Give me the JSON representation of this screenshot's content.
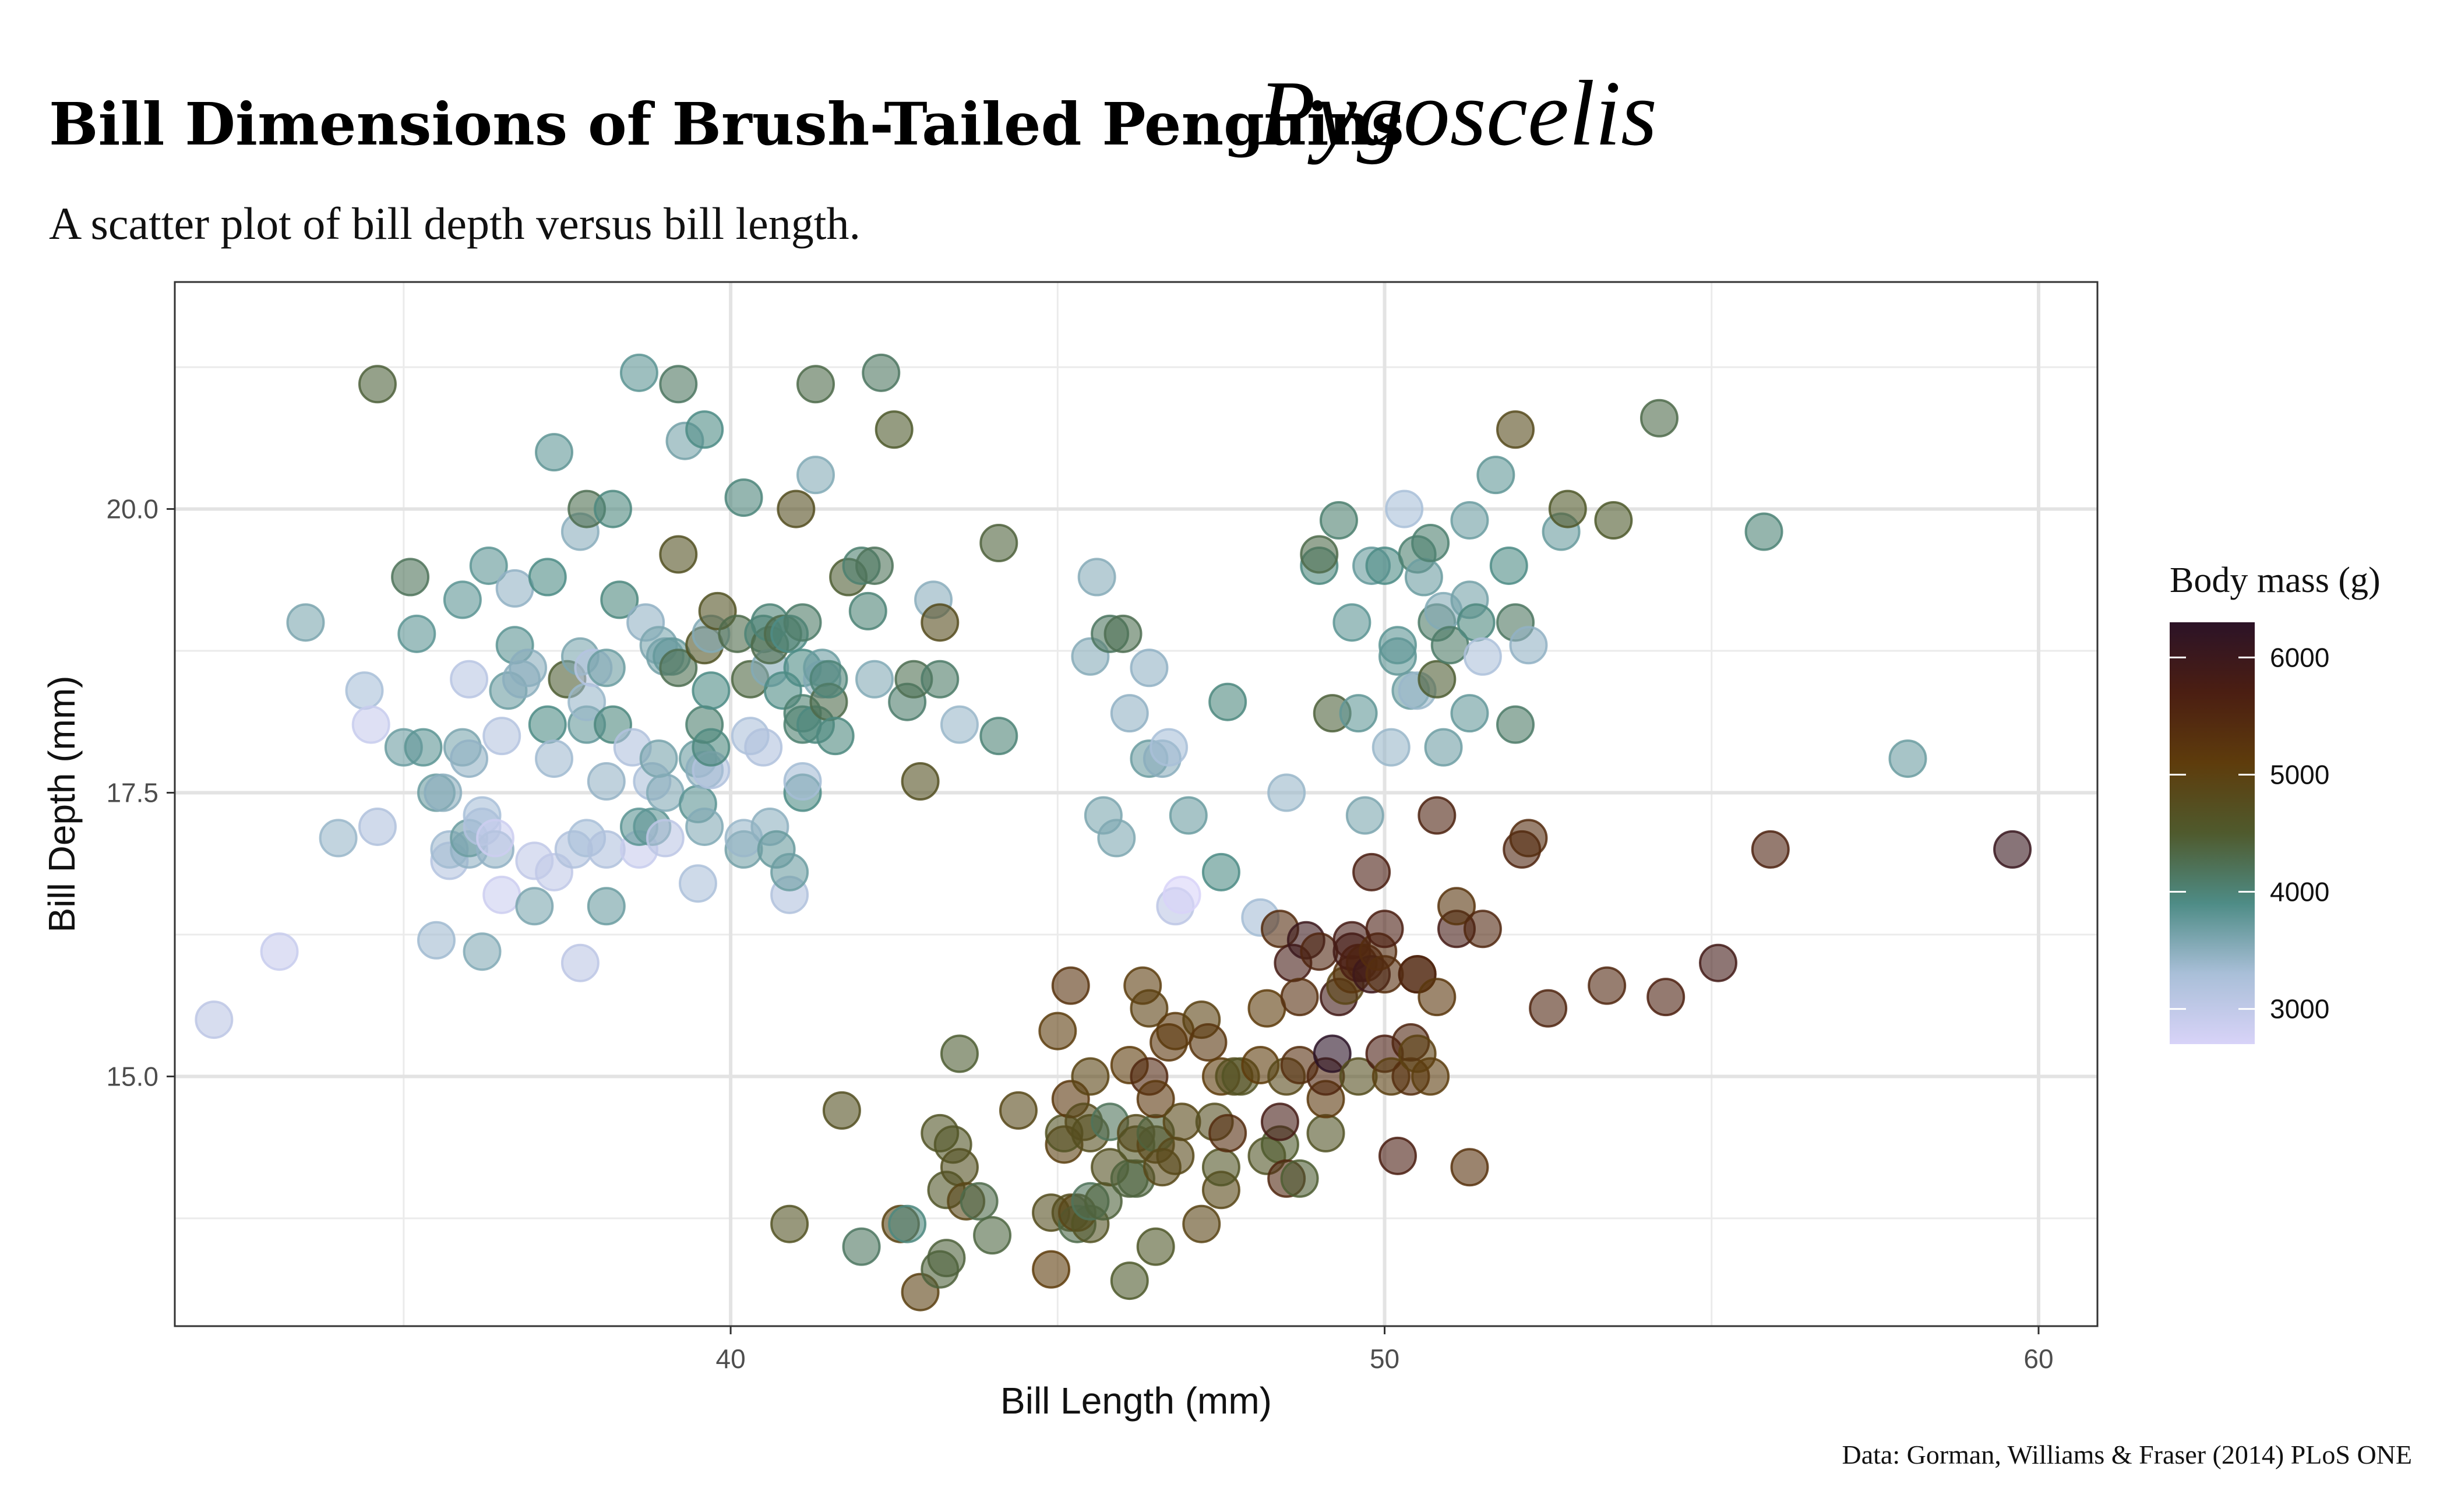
{
  "title": "Bill Dimensions of Brush-Tailed Penguins",
  "title_script": "Pygoscelis",
  "subtitle": "A scatter plot of bill depth versus bill length.",
  "caption": "Data: Gorman, Williams & Fraser (2014) PLoS ONE",
  "chart_data": {
    "type": "scatter",
    "xlabel": "Bill Length (mm)",
    "ylabel": "Bill Depth (mm)",
    "xlim": [
      31.5,
      60.9
    ],
    "ylim": [
      12.8,
      22.0
    ],
    "x_ticks": [
      40,
      50,
      60
    ],
    "x_tick_labels": [
      "40",
      "50",
      "60"
    ],
    "y_ticks": [
      15.0,
      17.5,
      20.0
    ],
    "y_tick_labels": [
      "15.0",
      "17.5",
      "20.0"
    ],
    "grid": true,
    "legend_position": "right",
    "color_legend": {
      "title": "Body mass (g)",
      "ticks": [
        3000,
        4000,
        5000,
        6000
      ],
      "tick_labels": [
        "3000",
        "4000",
        "5000",
        "6000"
      ],
      "range": [
        2700,
        6300
      ],
      "palette": [
        "#d8d3f8",
        "#a9bfd8",
        "#4e8c86",
        "#4f5a2d",
        "#5e3c0c",
        "#4b1e12",
        "#2c1327"
      ]
    },
    "points": [
      [
        32.1,
        15.5,
        3050
      ],
      [
        33.1,
        16.1,
        2900
      ],
      [
        33.5,
        19.0,
        3600
      ],
      [
        34.0,
        17.1,
        3400
      ],
      [
        34.4,
        18.4,
        3300
      ],
      [
        34.5,
        18.1,
        2900
      ],
      [
        34.6,
        17.2,
        3200
      ],
      [
        34.6,
        21.1,
        4400
      ],
      [
        35.0,
        17.9,
        3700
      ],
      [
        35.1,
        19.4,
        4200
      ],
      [
        35.2,
        18.9,
        3800
      ],
      [
        35.3,
        17.9,
        3800
      ],
      [
        35.5,
        16.2,
        3350
      ],
      [
        35.5,
        17.5,
        3700
      ],
      [
        35.6,
        17.5,
        3500
      ],
      [
        35.7,
        16.9,
        3150
      ],
      [
        35.7,
        17.0,
        3350
      ],
      [
        35.9,
        19.2,
        3800
      ],
      [
        35.9,
        17.9,
        3600
      ],
      [
        36.0,
        17.0,
        3450
      ],
      [
        36.0,
        17.1,
        3700
      ],
      [
        36.0,
        17.8,
        3450
      ],
      [
        36.0,
        18.5,
        3100
      ],
      [
        36.2,
        16.1,
        3550
      ],
      [
        36.2,
        17.2,
        3200
      ],
      [
        36.2,
        17.3,
        3300
      ],
      [
        36.3,
        19.5,
        3800
      ],
      [
        36.4,
        17.0,
        3450
      ],
      [
        36.4,
        17.1,
        2850
      ],
      [
        36.5,
        16.6,
        2850
      ],
      [
        36.5,
        18.0,
        3150
      ],
      [
        36.6,
        18.4,
        3700
      ],
      [
        36.7,
        18.8,
        3800
      ],
      [
        36.7,
        19.3,
        3450
      ],
      [
        36.8,
        18.5,
        3500
      ],
      [
        36.9,
        18.6,
        3500
      ],
      [
        37.0,
        16.5,
        3600
      ],
      [
        37.0,
        16.9,
        3000
      ],
      [
        37.2,
        18.1,
        3900
      ],
      [
        37.2,
        19.4,
        3900
      ],
      [
        37.3,
        16.8,
        3000
      ],
      [
        37.3,
        17.8,
        3350
      ],
      [
        37.3,
        20.5,
        3775
      ],
      [
        37.5,
        18.5,
        4450
      ],
      [
        37.6,
        17.0,
        3200
      ],
      [
        37.7,
        16.0,
        3050
      ],
      [
        37.7,
        18.7,
        3600
      ],
      [
        37.7,
        19.8,
        3500
      ],
      [
        37.8,
        17.1,
        3300
      ],
      [
        37.8,
        18.1,
        3750
      ],
      [
        37.8,
        18.3,
        3400
      ],
      [
        37.8,
        20.0,
        4250
      ],
      [
        37.9,
        18.6,
        3150
      ],
      [
        38.1,
        16.5,
        3700
      ],
      [
        38.1,
        17.0,
        3200
      ],
      [
        38.1,
        17.6,
        3425
      ],
      [
        38.1,
        18.6,
        3700
      ],
      [
        38.2,
        18.1,
        3950
      ],
      [
        38.2,
        20.0,
        3950
      ],
      [
        38.3,
        19.2,
        3950
      ],
      [
        38.5,
        17.9,
        3200
      ],
      [
        38.6,
        17.0,
        2900
      ],
      [
        38.6,
        17.2,
        3800
      ],
      [
        38.6,
        21.2,
        3800
      ],
      [
        38.7,
        19.0,
        3450
      ],
      [
        38.8,
        17.2,
        3800
      ],
      [
        38.8,
        17.6,
        3275
      ],
      [
        38.9,
        17.8,
        3625
      ],
      [
        38.9,
        18.8,
        3600
      ],
      [
        39.0,
        17.1,
        3050
      ],
      [
        39.0,
        17.5,
        3550
      ],
      [
        39.0,
        18.7,
        3650
      ],
      [
        39.1,
        18.7,
        3750
      ],
      [
        39.2,
        18.6,
        4250
      ],
      [
        39.2,
        19.6,
        4675
      ],
      [
        39.2,
        21.1,
        4150
      ],
      [
        39.3,
        20.6,
        3650
      ],
      [
        39.5,
        16.7,
        3250
      ],
      [
        39.5,
        17.4,
        3800
      ],
      [
        39.5,
        17.8,
        3700
      ],
      [
        39.6,
        17.2,
        3550
      ],
      [
        39.6,
        17.7,
        3500
      ],
      [
        39.6,
        18.1,
        4050
      ],
      [
        39.6,
        18.8,
        4600
      ],
      [
        39.6,
        20.7,
        3900
      ],
      [
        39.7,
        17.7,
        3200
      ],
      [
        39.7,
        17.9,
        3950
      ],
      [
        39.7,
        18.4,
        3900
      ],
      [
        39.7,
        18.9,
        3550
      ],
      [
        39.8,
        19.1,
        4650
      ],
      [
        40.1,
        18.9,
        4300
      ],
      [
        40.2,
        17.0,
        3650
      ],
      [
        40.2,
        17.1,
        3400
      ],
      [
        40.2,
        20.1,
        3975
      ],
      [
        40.3,
        18.0,
        3250
      ],
      [
        40.3,
        18.5,
        4350
      ],
      [
        40.5,
        17.9,
        3200
      ],
      [
        40.5,
        18.9,
        4000
      ],
      [
        40.6,
        17.2,
        3475
      ],
      [
        40.6,
        18.6,
        3550
      ],
      [
        40.6,
        18.8,
        4300
      ],
      [
        40.6,
        19.0,
        4000
      ],
      [
        40.7,
        17.0,
        3725
      ],
      [
        40.8,
        18.4,
        3900
      ],
      [
        40.8,
        18.9,
        4300
      ],
      [
        40.9,
        16.6,
        3200
      ],
      [
        40.9,
        16.8,
        3700
      ],
      [
        40.9,
        18.9,
        3900
      ],
      [
        41.0,
        20.0,
        4725
      ],
      [
        41.1,
        17.5,
        3900
      ],
      [
        41.1,
        17.6,
        3325
      ],
      [
        41.1,
        18.1,
        4050
      ],
      [
        41.1,
        18.2,
        4050
      ],
      [
        41.1,
        18.6,
        3900
      ],
      [
        41.1,
        19.0,
        4100
      ],
      [
        41.3,
        18.1,
        3950
      ],
      [
        41.3,
        20.3,
        3550
      ],
      [
        41.3,
        21.1,
        4300
      ],
      [
        41.4,
        18.5,
        3550
      ],
      [
        41.4,
        18.6,
        3700
      ],
      [
        41.5,
        18.3,
        4300
      ],
      [
        41.5,
        18.5,
        4000
      ],
      [
        41.6,
        18.0,
        3950
      ],
      [
        41.8,
        19.4,
        4450
      ],
      [
        42.0,
        19.5,
        4050
      ],
      [
        42.1,
        19.1,
        4000
      ],
      [
        42.2,
        18.5,
        3550
      ],
      [
        42.2,
        19.5,
        4200
      ],
      [
        42.3,
        21.2,
        4150
      ],
      [
        42.5,
        20.7,
        4500
      ],
      [
        42.7,
        18.3,
        4075
      ],
      [
        42.8,
        18.5,
        4250
      ],
      [
        42.9,
        17.6,
        4700
      ],
      [
        43.1,
        19.2,
        3500
      ],
      [
        43.2,
        18.5,
        4100
      ],
      [
        43.2,
        19.0,
        4775
      ],
      [
        43.5,
        18.1,
        3400
      ],
      [
        44.1,
        18.0,
        4000
      ],
      [
        44.1,
        19.7,
        4400
      ],
      [
        45.5,
        18.7,
        3525
      ],
      [
        45.6,
        19.4,
        3525
      ],
      [
        45.7,
        17.3,
        3600
      ],
      [
        45.8,
        18.9,
        4150
      ],
      [
        45.9,
        17.1,
        3575
      ],
      [
        46.0,
        18.9,
        4250
      ],
      [
        46.1,
        18.2,
        3450
      ],
      [
        46.4,
        17.8,
        3700
      ],
      [
        46.4,
        18.6,
        3450
      ],
      [
        46.6,
        17.8,
        3500
      ],
      [
        46.7,
        17.9,
        3300
      ],
      [
        46.8,
        16.5,
        3050
      ],
      [
        46.9,
        16.6,
        2700
      ],
      [
        47.0,
        17.3,
        3700
      ],
      [
        47.5,
        16.8,
        3900
      ],
      [
        47.6,
        18.3,
        3950
      ],
      [
        48.1,
        16.4,
        3325
      ],
      [
        48.5,
        17.5,
        3400
      ],
      [
        49.0,
        19.5,
        3950
      ],
      [
        49.0,
        19.6,
        4300
      ],
      [
        49.2,
        18.2,
        4400
      ],
      [
        49.3,
        19.9,
        4050
      ],
      [
        49.5,
        19.0,
        3800
      ],
      [
        49.6,
        18.2,
        3775
      ],
      [
        49.7,
        17.3,
        3600
      ],
      [
        49.8,
        19.5,
        3750
      ],
      [
        50.0,
        19.5,
        3900
      ],
      [
        50.1,
        17.9,
        3400
      ],
      [
        50.2,
        18.7,
        3775
      ],
      [
        50.2,
        18.8,
        3800
      ],
      [
        50.3,
        20.0,
        3300
      ],
      [
        50.4,
        18.4,
        3700
      ],
      [
        50.5,
        18.4,
        3400
      ],
      [
        50.5,
        19.6,
        4050
      ],
      [
        50.6,
        19.4,
        3700
      ],
      [
        50.7,
        19.7,
        4050
      ],
      [
        50.8,
        18.5,
        4450
      ],
      [
        50.8,
        19.0,
        4100
      ],
      [
        50.9,
        17.9,
        3675
      ],
      [
        50.9,
        19.1,
        3550
      ],
      [
        51.0,
        18.8,
        4100
      ],
      [
        51.3,
        18.2,
        3750
      ],
      [
        51.3,
        19.2,
        3650
      ],
      [
        51.3,
        19.9,
        3700
      ],
      [
        51.4,
        19.0,
        3950
      ],
      [
        51.5,
        18.7,
        3250
      ],
      [
        51.7,
        20.3,
        3775
      ],
      [
        51.9,
        19.5,
        3900
      ],
      [
        52.0,
        18.1,
        4100
      ],
      [
        52.0,
        19.0,
        4150
      ],
      [
        52.0,
        20.7,
        4800
      ],
      [
        52.2,
        18.8,
        3450
      ],
      [
        52.7,
        19.8,
        3725
      ],
      [
        52.8,
        20.0,
        4550
      ],
      [
        53.5,
        19.9,
        4500
      ],
      [
        54.2,
        20.8,
        4300
      ],
      [
        55.8,
        19.8,
        4000
      ],
      [
        58.0,
        17.8,
        3700
      ],
      [
        40.9,
        13.7,
        4650
      ],
      [
        41.7,
        14.7,
        4700
      ],
      [
        42.0,
        13.5,
        4150
      ],
      [
        42.6,
        13.7,
        4950
      ],
      [
        42.7,
        13.7,
        3950
      ],
      [
        42.9,
        13.1,
        5000
      ],
      [
        43.2,
        13.3,
        4400
      ],
      [
        43.2,
        14.5,
        4600
      ],
      [
        43.3,
        13.4,
        4400
      ],
      [
        43.3,
        14.0,
        4575
      ],
      [
        43.4,
        14.4,
        4600
      ],
      [
        43.5,
        14.2,
        4700
      ],
      [
        43.5,
        15.2,
        4450
      ],
      [
        43.6,
        13.9,
        4900
      ],
      [
        43.8,
        13.9,
        4300
      ],
      [
        44.0,
        13.6,
        4350
      ],
      [
        44.4,
        14.7,
        4850
      ],
      [
        44.9,
        13.3,
        5100
      ],
      [
        44.9,
        13.8,
        4750
      ],
      [
        45.0,
        15.4,
        5050
      ],
      [
        45.1,
        14.4,
        5000
      ],
      [
        45.1,
        14.5,
        4650
      ],
      [
        45.2,
        13.8,
        4750
      ],
      [
        45.2,
        14.8,
        5200
      ],
      [
        45.2,
        15.8,
        5300
      ],
      [
        45.3,
        13.7,
        4300
      ],
      [
        45.3,
        13.8,
        4900
      ],
      [
        45.4,
        14.6,
        4800
      ],
      [
        45.5,
        13.7,
        4650
      ],
      [
        45.5,
        13.9,
        4200
      ],
      [
        45.5,
        14.5,
        4750
      ],
      [
        45.5,
        15.0,
        4950
      ],
      [
        45.7,
        13.9,
        4400
      ],
      [
        45.8,
        14.2,
        4700
      ],
      [
        45.8,
        14.6,
        4200
      ],
      [
        46.1,
        13.2,
        4500
      ],
      [
        46.1,
        14.1,
        4400
      ],
      [
        46.1,
        15.1,
        5100
      ],
      [
        46.2,
        14.1,
        4375
      ],
      [
        46.2,
        14.4,
        4600
      ],
      [
        46.2,
        14.5,
        4800
      ],
      [
        46.3,
        15.8,
        5050
      ],
      [
        46.4,
        15.0,
        5500
      ],
      [
        46.4,
        15.6,
        5000
      ],
      [
        46.5,
        13.5,
        4550
      ],
      [
        46.5,
        14.4,
        4900
      ],
      [
        46.5,
        14.5,
        4400
      ],
      [
        46.5,
        14.8,
        5200
      ],
      [
        46.6,
        14.2,
        4850
      ],
      [
        46.7,
        15.3,
        5200
      ],
      [
        46.8,
        14.3,
        4850
      ],
      [
        46.8,
        15.4,
        5150
      ],
      [
        46.9,
        14.6,
        4875
      ],
      [
        47.2,
        13.7,
        4925
      ],
      [
        47.2,
        15.5,
        4975
      ],
      [
        47.3,
        15.3,
        5250
      ],
      [
        47.4,
        14.6,
        4725
      ],
      [
        47.5,
        14.0,
        4875
      ],
      [
        47.5,
        14.2,
        4600
      ],
      [
        47.5,
        15.0,
        5100
      ],
      [
        47.6,
        14.5,
        5400
      ],
      [
        47.7,
        15.0,
        4750
      ],
      [
        47.8,
        15.0,
        4650
      ],
      [
        48.1,
        15.1,
        5100
      ],
      [
        48.2,
        14.3,
        4600
      ],
      [
        48.2,
        15.6,
        5100
      ],
      [
        48.4,
        14.4,
        4500
      ],
      [
        48.4,
        14.6,
        5800
      ],
      [
        48.4,
        16.3,
        5400
      ],
      [
        48.5,
        14.1,
        5500
      ],
      [
        48.5,
        15.0,
        4850
      ],
      [
        48.6,
        16.0,
        5800
      ],
      [
        48.7,
        14.1,
        4450
      ],
      [
        48.7,
        15.1,
        5350
      ],
      [
        48.7,
        15.7,
        5350
      ],
      [
        48.8,
        16.2,
        6000
      ],
      [
        49.0,
        16.1,
        5550
      ],
      [
        49.1,
        14.5,
        4625
      ],
      [
        49.1,
        14.8,
        5150
      ],
      [
        49.1,
        15.0,
        5500
      ],
      [
        49.2,
        15.2,
        6300
      ],
      [
        49.3,
        15.7,
        5850
      ],
      [
        49.4,
        15.8,
        4925
      ],
      [
        49.5,
        15.9,
        5250
      ],
      [
        49.5,
        16.1,
        5850
      ],
      [
        49.5,
        16.2,
        5800
      ],
      [
        49.6,
        15.0,
        4750
      ],
      [
        49.6,
        16.0,
        5700
      ],
      [
        49.7,
        16.0,
        5600
      ],
      [
        49.8,
        15.9,
        5950
      ],
      [
        49.8,
        16.8,
        5700
      ],
      [
        49.9,
        16.1,
        5400
      ],
      [
        50.0,
        15.2,
        5700
      ],
      [
        50.0,
        15.9,
        5350
      ],
      [
        50.0,
        16.3,
        5700
      ],
      [
        50.1,
        15.0,
        5000
      ],
      [
        50.2,
        14.3,
        5700
      ],
      [
        50.4,
        15.0,
        5350
      ],
      [
        50.4,
        15.3,
        5550
      ],
      [
        50.5,
        15.2,
        5000
      ],
      [
        50.5,
        15.9,
        5400
      ],
      [
        50.5,
        15.9,
        5550
      ],
      [
        50.7,
        15.0,
        5050
      ],
      [
        50.8,
        15.7,
        5200
      ],
      [
        50.8,
        17.3,
        5600
      ],
      [
        51.1,
        16.3,
        5800
      ],
      [
        51.1,
        16.5,
        5250
      ],
      [
        51.3,
        14.2,
        5300
      ],
      [
        51.5,
        16.3,
        5500
      ],
      [
        52.1,
        17.0,
        5550
      ],
      [
        52.2,
        17.1,
        5400
      ],
      [
        52.5,
        15.6,
        5550
      ],
      [
        53.4,
        15.8,
        5500
      ],
      [
        54.3,
        15.7,
        5650
      ],
      [
        55.1,
        16.0,
        5850
      ],
      [
        55.9,
        17.0,
        5600
      ],
      [
        59.6,
        17.0,
        6050
      ]
    ]
  }
}
